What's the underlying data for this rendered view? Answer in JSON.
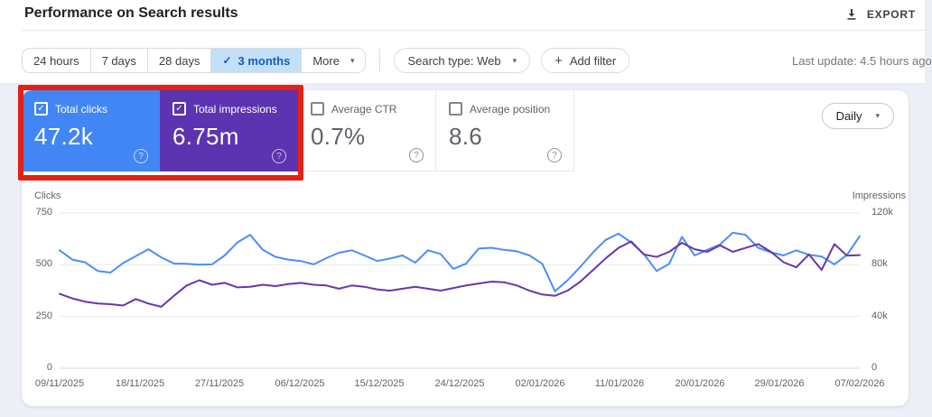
{
  "header": {
    "title": "Performance on Search results",
    "export_label": "EXPORT"
  },
  "toolbar": {
    "date_ranges": [
      "24 hours",
      "7 days",
      "28 days",
      "3 months"
    ],
    "selected_range": "3 months",
    "more_label": "More",
    "search_type_label": "Search type: Web",
    "add_filter_label": "Add filter",
    "last_update": "Last update: 4.5 hours ago"
  },
  "metrics": [
    {
      "label": "Total clicks",
      "value": "47.2k",
      "checked": true,
      "bg": "#4285f4",
      "fg": "#ffffff"
    },
    {
      "label": "Total impressions",
      "value": "6.75m",
      "checked": true,
      "bg": "#5c33b0",
      "fg": "#ffffff"
    },
    {
      "label": "Average CTR",
      "value": "0.7%",
      "checked": false,
      "bg": "#ffffff",
      "fg": "#5f6368"
    },
    {
      "label": "Average position",
      "value": "8.6",
      "checked": false,
      "bg": "#ffffff",
      "fg": "#5f6368"
    }
  ],
  "granularity": {
    "label": "Daily"
  },
  "annotation": {
    "color": "#e52015"
  },
  "colors": {
    "clicks_line": "#4c8df6",
    "impressions_line": "#6637ad",
    "grid": "#e7e9ec",
    "baseline": "#d7dade"
  },
  "chart_data": {
    "type": "line",
    "title": "",
    "x_tick_labels": [
      "09/11/2025",
      "18/11/2025",
      "27/11/2025",
      "06/12/2025",
      "15/12/2025",
      "24/12/2025",
      "02/01/2026",
      "11/01/2026",
      "20/01/2026",
      "29/01/2026",
      "07/02/2026"
    ],
    "left_axis": {
      "label": "Clicks",
      "ticks": [
        "0",
        "250",
        "500",
        "750"
      ],
      "max": 750
    },
    "right_axis": {
      "label": "Impressions",
      "ticks": [
        "0",
        "40k",
        "80k",
        "120k"
      ],
      "max": 120000
    },
    "grid": true,
    "legend": "none",
    "series": [
      {
        "name": "Total clicks",
        "axis": "left",
        "color": "#4c8df6",
        "values": [
          570,
          525,
          512,
          470,
          462,
          508,
          542,
          575,
          536,
          506,
          505,
          500,
          502,
          545,
          608,
          645,
          572,
          538,
          525,
          518,
          502,
          532,
          558,
          570,
          545,
          518,
          530,
          545,
          510,
          570,
          552,
          480,
          505,
          578,
          582,
          572,
          565,
          545,
          505,
          372,
          425,
          490,
          560,
          620,
          650,
          608,
          552,
          470,
          505,
          635,
          545,
          572,
          598,
          655,
          645,
          582,
          560,
          545,
          570,
          548,
          540,
          502,
          548,
          638
        ]
      },
      {
        "name": "Total impressions",
        "axis": "right",
        "color": "#6637ad",
        "values": [
          57500,
          54000,
          51500,
          50000,
          49500,
          48500,
          53500,
          50000,
          47500,
          56000,
          64000,
          68000,
          64500,
          66000,
          62500,
          63000,
          64500,
          63500,
          65000,
          66000,
          64500,
          64000,
          61500,
          64000,
          63000,
          61000,
          60000,
          61500,
          63000,
          61500,
          60000,
          62000,
          64000,
          65500,
          67000,
          66500,
          64000,
          60000,
          57000,
          56000,
          60000,
          67000,
          76000,
          85000,
          93000,
          98000,
          88000,
          86000,
          90000,
          97000,
          92000,
          90000,
          95000,
          90000,
          93000,
          96000,
          90000,
          82000,
          78000,
          88000,
          76000,
          96000,
          87000,
          87500
        ]
      }
    ]
  }
}
